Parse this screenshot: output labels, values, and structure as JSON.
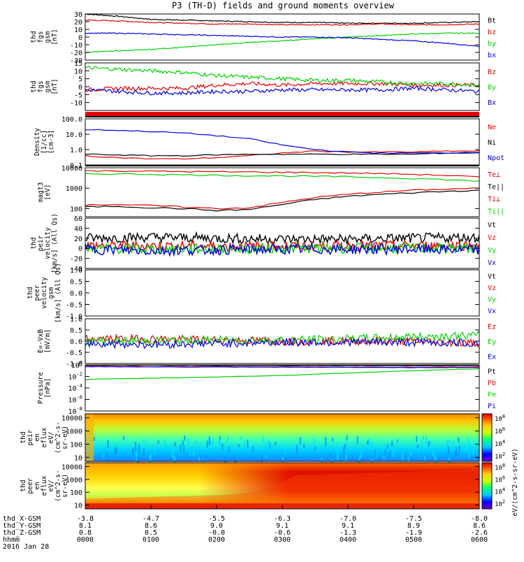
{
  "title": "P3 (TH-D) fields and ground moments overview",
  "colors": {
    "black": "#000000",
    "red": "#e00000",
    "green": "#00d000",
    "blue": "#0000e0",
    "purple": "#a000a0",
    "background": "#ffffff"
  },
  "chart_data": [
    {
      "type": "line",
      "panel": "fgs_gsm_total",
      "ylabel": [
        "thd",
        "fgs",
        "gsm",
        "[nT]"
      ],
      "ylim": [
        -30,
        30
      ],
      "yticks": [
        "30",
        "20",
        "10",
        "0",
        "-10",
        "-20",
        "-30"
      ],
      "legend": [
        "Bt",
        "bz",
        "by",
        "bx"
      ],
      "legend_colors": [
        "black",
        "red",
        "green",
        "blue"
      ],
      "series": [
        {
          "name": "Bt",
          "x": [
            0,
            0.5,
            1,
            1.5,
            2,
            2.5,
            3,
            3.5,
            4,
            4.5,
            5,
            5.5,
            6
          ],
          "values": [
            30,
            27,
            23,
            22,
            21,
            20,
            19,
            19,
            18,
            18,
            18,
            19,
            20
          ]
        },
        {
          "name": "bz",
          "x": [
            0,
            0.5,
            1,
            1.5,
            2,
            2.5,
            3,
            3.5,
            4,
            4.5,
            5,
            5.5,
            6
          ],
          "values": [
            22,
            21,
            19,
            18,
            17,
            17,
            16,
            16,
            16,
            17,
            16,
            16,
            17
          ]
        },
        {
          "name": "by",
          "x": [
            0,
            0.5,
            1,
            1.5,
            2,
            2.5,
            3,
            3.5,
            4,
            4.5,
            5,
            5.5,
            6
          ],
          "values": [
            -20,
            -18,
            -16,
            -13,
            -10,
            -7,
            -5,
            -2,
            0,
            2,
            4,
            5,
            5
          ]
        },
        {
          "name": "bx",
          "x": [
            0,
            0.5,
            1,
            1.5,
            2,
            2.5,
            3,
            3.5,
            4,
            4.5,
            5,
            5.5,
            6
          ],
          "values": [
            5,
            5,
            4,
            3,
            2,
            1,
            0,
            0,
            -1,
            -3,
            -5,
            -8,
            -12
          ]
        }
      ]
    },
    {
      "type": "line",
      "panel": "fgs_gsm_components",
      "ylabel": [
        "thd",
        "fgs",
        "gsm",
        "[nT]"
      ],
      "ylim": [
        -15,
        15
      ],
      "yticks": [
        "15",
        "10",
        "5",
        "0",
        "-5",
        "-10"
      ],
      "legend": [
        "Bz",
        "By",
        "Bx"
      ],
      "legend_colors": [
        "red",
        "green",
        "blue"
      ],
      "series": [
        {
          "name": "Bz",
          "x": [
            0,
            0.5,
            1,
            1.5,
            2,
            2.5,
            3,
            3.5,
            4,
            4.5,
            5,
            5.5,
            6
          ],
          "values": [
            -2,
            -1,
            -1,
            -1,
            1,
            2,
            1,
            2,
            2,
            2,
            1,
            1,
            1
          ]
        },
        {
          "name": "By",
          "x": [
            0,
            0.5,
            1,
            1.5,
            2,
            2.5,
            3,
            3.5,
            4,
            4.5,
            5,
            5.5,
            6
          ],
          "values": [
            12,
            11,
            10,
            9,
            7,
            6,
            5,
            4,
            4,
            3,
            2,
            2,
            1
          ]
        },
        {
          "name": "Bx",
          "x": [
            0,
            0.5,
            1,
            1.5,
            2,
            2.5,
            3,
            3.5,
            4,
            4.5,
            5,
            5.5,
            6
          ],
          "values": [
            -2,
            -3,
            -4,
            -4,
            -3,
            -3,
            -2,
            -2,
            -2,
            -2,
            -1,
            -2,
            -3
          ]
        }
      ]
    },
    {
      "type": "line",
      "panel": "density",
      "ylabel": [
        "Density",
        "[1/cc]",
        "[cm-3]"
      ],
      "yscale": "log",
      "ylim": [
        0.1,
        100
      ],
      "yticks": [
        "100.0",
        "10.0",
        "1.0",
        "0.1"
      ],
      "legend": [
        "Ne",
        "Ni",
        "Npot"
      ],
      "legend_colors": [
        "red",
        "black",
        "blue"
      ],
      "series": [
        {
          "name": "Ne",
          "x": [
            0,
            0.5,
            1,
            1.5,
            2,
            2.5,
            3,
            3.5,
            4,
            4.5,
            5,
            5.5,
            6
          ],
          "values": [
            0.4,
            0.3,
            0.25,
            0.25,
            0.3,
            0.4,
            0.6,
            0.8,
            0.7,
            0.7,
            0.7,
            0.8,
            0.8
          ]
        },
        {
          "name": "Ni",
          "x": [
            0,
            0.5,
            1,
            1.5,
            2,
            2.5,
            3,
            3.5,
            4,
            4.5,
            5,
            5.5,
            6
          ],
          "values": [
            0.5,
            0.45,
            0.4,
            0.4,
            0.45,
            0.5,
            0.5,
            0.5,
            0.5,
            0.5,
            0.5,
            0.6,
            0.6
          ]
        },
        {
          "name": "Npot",
          "x": [
            0,
            0.5,
            1,
            1.5,
            2,
            2.5,
            3,
            3.5,
            4,
            4.5,
            5,
            5.5,
            6
          ],
          "values": [
            20,
            18,
            15,
            12,
            8,
            5,
            2,
            1,
            0.7,
            0.6,
            0.6,
            0.6,
            0.7
          ]
        }
      ]
    },
    {
      "type": "line",
      "panel": "temperature",
      "ylabel": [
        "magt3",
        "[eV]"
      ],
      "yscale": "log",
      "ylim": [
        40,
        10000
      ],
      "yticks": [
        "10000",
        "1000",
        "100"
      ],
      "legend": [
        "Te⊥",
        "Te||",
        "Ti⊥",
        "Ti||"
      ],
      "legend_colors": [
        "red",
        "black",
        "red",
        "green"
      ],
      "series": [
        {
          "name": "Te⊥",
          "x": [
            0,
            0.5,
            1,
            1.5,
            2,
            2.5,
            3,
            3.5,
            4,
            4.5,
            5,
            5.5,
            6
          ],
          "values": [
            150,
            160,
            140,
            120,
            100,
            110,
            200,
            350,
            500,
            650,
            800,
            900,
            1000
          ]
        },
        {
          "name": "Te||",
          "x": [
            0,
            0.5,
            1,
            1.5,
            2,
            2.5,
            3,
            3.5,
            4,
            4.5,
            5,
            5.5,
            6
          ],
          "values": [
            120,
            130,
            110,
            100,
            80,
            90,
            160,
            280,
            400,
            500,
            600,
            700,
            800
          ]
        },
        {
          "name": "Ti⊥",
          "x": [
            0,
            0.5,
            1,
            1.5,
            2,
            2.5,
            3,
            3.5,
            4,
            4.5,
            5,
            5.5,
            6
          ],
          "values": [
            7000,
            7000,
            6800,
            6500,
            6300,
            6200,
            6000,
            5800,
            5600,
            5200,
            4800,
            4200,
            3500
          ]
        },
        {
          "name": "Ti||",
          "x": [
            0,
            0.5,
            1,
            1.5,
            2,
            2.5,
            3,
            3.5,
            4,
            4.5,
            5,
            5.5,
            6
          ],
          "values": [
            5000,
            5000,
            4800,
            4500,
            4300,
            4100,
            4000,
            3800,
            3600,
            3300,
            3000,
            2600,
            2200
          ]
        }
      ]
    },
    {
      "type": "line",
      "panel": "peir_velocity",
      "ylabel": [
        "thd",
        "peir",
        "velocity",
        "[km/s] (All Qs)"
      ],
      "ylim": [
        -40,
        60
      ],
      "yticks": [
        "60",
        "40",
        "20",
        "0",
        "-20",
        "-40"
      ],
      "legend": [
        "Vt",
        "Vz",
        "Vy",
        "Vx"
      ],
      "legend_colors": [
        "black",
        "red",
        "green",
        "blue"
      ],
      "series": [
        {
          "name": "Vt",
          "x": [
            0,
            1,
            2,
            3,
            4,
            5,
            6
          ],
          "values": [
            20,
            22,
            20,
            18,
            18,
            20,
            22
          ]
        },
        {
          "name": "Vz",
          "x": [
            0,
            1,
            2,
            3,
            4,
            5,
            6
          ],
          "values": [
            5,
            5,
            4,
            4,
            5,
            5,
            6
          ]
        },
        {
          "name": "Vy",
          "x": [
            0,
            1,
            2,
            3,
            4,
            5,
            6
          ],
          "values": [
            0,
            -2,
            -1,
            0,
            0,
            0,
            0
          ]
        },
        {
          "name": "Vx",
          "x": [
            0,
            1,
            2,
            3,
            4,
            5,
            6
          ],
          "values": [
            -2,
            -5,
            -3,
            -2,
            -2,
            -2,
            -3
          ]
        }
      ]
    },
    {
      "type": "line",
      "panel": "peer_velocity",
      "ylabel": [
        "thd",
        "peer",
        "velocity",
        "gsm",
        "[km/s] (All Qs)"
      ],
      "ylim": [
        -1.0,
        1.0
      ],
      "yticks": [
        "1.0",
        "0.5",
        "0.0",
        "-0.5",
        "-1.0"
      ],
      "legend": [
        "Vt",
        "Vz",
        "Vy",
        "Vx"
      ],
      "legend_colors": [
        "black",
        "red",
        "green",
        "blue"
      ],
      "series": []
    },
    {
      "type": "line",
      "panel": "electric_field",
      "ylabel": [
        "E=-VxB",
        "[mV/m]"
      ],
      "ylim": [
        -1.0,
        1.0
      ],
      "yticks": [
        "1.0",
        "0.5",
        "0.0",
        "-0.5",
        "-1.0"
      ],
      "legend": [
        "Ez",
        "Ey",
        "Ex"
      ],
      "legend_colors": [
        "red",
        "green",
        "blue"
      ],
      "series": [
        {
          "name": "Ez",
          "x": [
            0,
            1,
            2,
            3,
            4,
            5,
            6
          ],
          "values": [
            0.1,
            0.1,
            0.05,
            0.0,
            0.0,
            0.0,
            -0.1
          ]
        },
        {
          "name": "Ey",
          "x": [
            0,
            1,
            2,
            3,
            4,
            5,
            6
          ],
          "values": [
            0.0,
            0.0,
            0.05,
            0.05,
            0.1,
            0.2,
            0.25
          ]
        },
        {
          "name": "Ex",
          "x": [
            0,
            1,
            2,
            3,
            4,
            5,
            6
          ],
          "values": [
            -0.1,
            -0.15,
            -0.1,
            -0.05,
            -0.05,
            -0.05,
            -0.1
          ]
        }
      ]
    },
    {
      "type": "line",
      "panel": "pressure",
      "ylabel": [
        "Pressure",
        "[nPa]"
      ],
      "yscale": "log",
      "ylim": [
        1e-08,
        1
      ],
      "yticks": [
        "10^0",
        "10^-2",
        "10^-4",
        "10^-6",
        "10^-8"
      ],
      "legend": [
        "Pt",
        "Pb",
        "Pe",
        "Pi"
      ],
      "legend_colors": [
        "black",
        "red",
        "green",
        "blue"
      ],
      "series": [
        {
          "name": "Pt",
          "x": [
            0,
            1,
            2,
            3,
            4,
            5,
            6
          ],
          "values": [
            0.9,
            0.85,
            0.8,
            0.8,
            0.75,
            0.7,
            0.8
          ]
        },
        {
          "name": "Pb",
          "x": [
            0,
            1,
            2,
            3,
            4,
            5,
            6
          ],
          "values": [
            0.6,
            0.5,
            0.5,
            0.45,
            0.4,
            0.4,
            0.45
          ]
        },
        {
          "name": "Pe",
          "x": [
            0,
            1,
            2,
            3,
            4,
            5,
            6
          ],
          "values": [
            0.003,
            0.005,
            0.008,
            0.015,
            0.04,
            0.1,
            0.2
          ]
        },
        {
          "name": "Pi",
          "x": [
            0,
            1,
            2,
            3,
            4,
            5,
            6
          ],
          "values": [
            0.5,
            0.45,
            0.42,
            0.4,
            0.38,
            0.35,
            0.35
          ]
        }
      ]
    },
    {
      "type": "heatmap",
      "panel": "peir_en_eflux",
      "ylabel": [
        "thd",
        "peir",
        "en",
        "eflux",
        "eV/",
        "(cm^2-s-",
        "sr-eV)"
      ],
      "yscale": "log",
      "ylim": [
        5,
        20000
      ],
      "yticks": [
        "10000",
        "1000",
        "100",
        "10"
      ],
      "colorbar": {
        "scale": "log",
        "ticks": [
          "10^8",
          "10^6",
          "10^4",
          "10^2"
        ],
        "label": "eV/(cm^2-s-sr-eV)"
      }
    },
    {
      "type": "heatmap",
      "panel": "peer_en_eflux",
      "ylabel": [
        "thd",
        "peer",
        "en",
        "eflux",
        "eV/",
        "(cm^2-s-",
        "sr-eV)"
      ],
      "yscale": "log",
      "ylim": [
        5,
        20000
      ],
      "yticks": [
        "10000",
        "1000",
        "100",
        "10"
      ],
      "colorbar": {
        "scale": "log",
        "ticks": [
          "10^8",
          "10^6",
          "10^4",
          "10^2"
        ],
        "label": "eV/(cm^2-s-sr-eV)"
      }
    }
  ],
  "xaxis": {
    "rows": [
      {
        "label": "thd_X-GSM",
        "values": [
          "-3.8",
          "-4.7",
          "-5.5",
          "-6.3",
          "-7.0",
          "-7.5",
          "-8.0"
        ]
      },
      {
        "label": "thd_Y-GSM",
        "values": [
          "8.1",
          "8.6",
          "9.0",
          "9.1",
          "9.1",
          "8.9",
          "8.6"
        ]
      },
      {
        "label": "thd_Z-GSM",
        "values": [
          "0.8",
          "0.5",
          "-0.0",
          "-0.6",
          "-1.3",
          "-1.9",
          "-2.6"
        ]
      },
      {
        "label": "hhmm",
        "values": [
          "0000",
          "0100",
          "0200",
          "0300",
          "0400",
          "0500",
          "0600"
        ]
      }
    ],
    "date": "2016 Jan 28"
  }
}
